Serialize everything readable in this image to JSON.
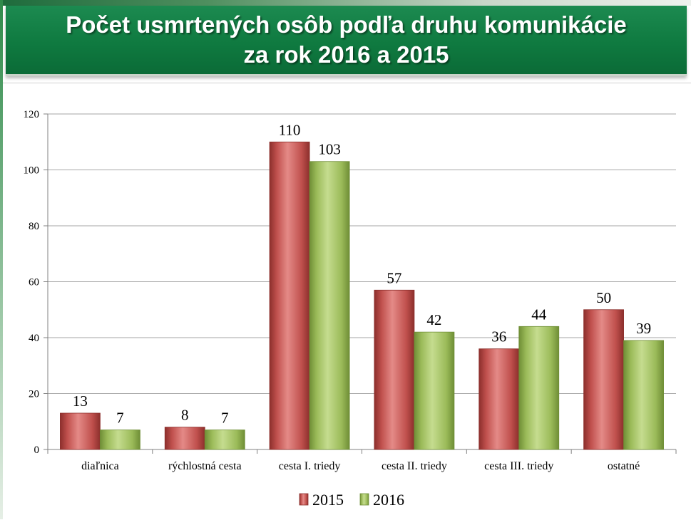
{
  "title": {
    "line1": "Počet usmrtených osôb podľa druhu komunikácie",
    "line2": "za rok 2016 a 2015"
  },
  "colors": {
    "series_2015": "#c0504d",
    "series_2015_dark": "#8c2f2c",
    "series_2015_light": "#e48a87",
    "series_2016": "#9bbb59",
    "series_2016_dark": "#6f8e36",
    "series_2016_light": "#c5dc8f",
    "title_bg": "#0f7a40"
  },
  "chart_data": {
    "type": "bar",
    "categories": [
      "diaľnica",
      "rýchlostná cesta",
      "cesta I. triedy",
      "cesta II. triedy",
      "cesta III. triedy",
      "ostatné"
    ],
    "series": [
      {
        "name": "2015",
        "values": [
          13,
          8,
          110,
          57,
          36,
          50
        ]
      },
      {
        "name": "2016",
        "values": [
          7,
          7,
          103,
          42,
          44,
          39
        ]
      }
    ],
    "ylim": [
      0,
      120
    ],
    "yticks": [
      0,
      20,
      40,
      60,
      80,
      100,
      120
    ],
    "grid": true,
    "legend_position": "bottom",
    "data_labels": true
  }
}
